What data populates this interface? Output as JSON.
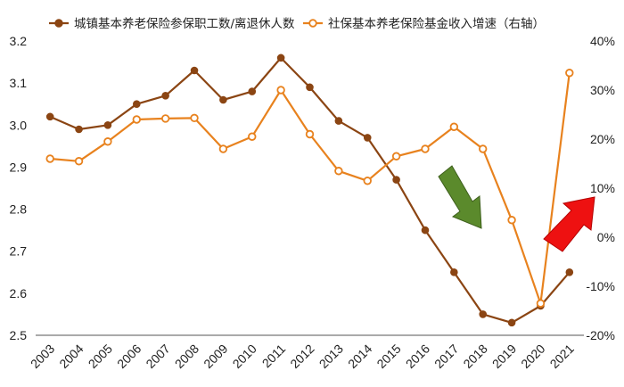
{
  "chart_data": {
    "type": "line",
    "categories": [
      "2003",
      "2004",
      "2005",
      "2006",
      "2007",
      "2008",
      "2009",
      "2010",
      "2011",
      "2012",
      "2013",
      "2014",
      "2015",
      "2016",
      "2017",
      "2018",
      "2019",
      "2020",
      "2021"
    ],
    "series": [
      {
        "name": "城镇基本养老保险参保职工数/离退休人数",
        "axis": "left",
        "color": "#8B4513",
        "values": [
          3.02,
          2.99,
          3.0,
          3.05,
          3.07,
          3.13,
          3.06,
          3.08,
          3.16,
          3.09,
          3.01,
          2.97,
          2.87,
          2.75,
          2.65,
          2.55,
          2.53,
          2.57,
          2.65
        ]
      },
      {
        "name": "社保基本养老保险基金收入增速（右轴）",
        "axis": "right",
        "color": "#E8821E",
        "values": [
          16,
          15.5,
          19.5,
          24,
          24.2,
          24.3,
          18,
          20.5,
          30,
          21,
          13.5,
          11.5,
          16.5,
          18,
          22.5,
          18,
          3.5,
          -13.5,
          33.5
        ]
      }
    ],
    "yaxis_left": {
      "min": 2.5,
      "max": 3.2,
      "ticks": [
        "2.5",
        "2.6",
        "2.7",
        "2.8",
        "2.9",
        "3.0",
        "3.1",
        "3.2"
      ]
    },
    "yaxis_right": {
      "min": -20,
      "max": 40,
      "ticks": [
        "-20%",
        "-10%",
        "0%",
        "10%",
        "20%",
        "30%",
        "40%"
      ]
    },
    "grid": false,
    "legend_position": "top",
    "annotations": [
      {
        "kind": "arrow-down",
        "color": "#5B8A2C"
      },
      {
        "kind": "arrow-up",
        "color": "#EE1111"
      }
    ]
  }
}
